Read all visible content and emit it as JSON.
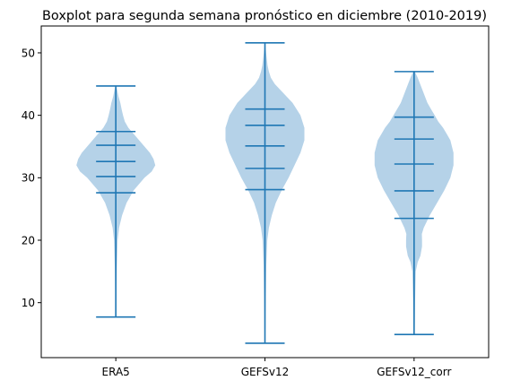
{
  "chart_data": {
    "type": "violin",
    "title": "Boxplot para segunda semana pronóstico en diciembre (2010-2019)",
    "xlabel": "",
    "ylabel": "",
    "ylim": [
      1.2,
      54.3
    ],
    "yticks": [
      10,
      20,
      30,
      40,
      50
    ],
    "categories": [
      "ERA5",
      "GEFSv12",
      "GEFSv12_corr"
    ],
    "series": [
      {
        "min": 7.7,
        "max": 44.7,
        "quantiles": [
          27.6,
          30.2,
          32.6,
          35.2,
          37.4
        ],
        "density": [
          [
            8,
            0.2
          ],
          [
            15,
            0.5
          ],
          [
            20,
            1.0
          ],
          [
            22,
            1.8
          ],
          [
            24,
            3.5
          ],
          [
            26,
            6
          ],
          [
            28,
            10
          ],
          [
            30,
            16
          ],
          [
            31,
            20
          ],
          [
            32,
            22
          ],
          [
            33,
            21
          ],
          [
            34,
            19
          ],
          [
            35,
            16
          ],
          [
            36,
            13
          ],
          [
            37,
            10
          ],
          [
            38,
            7
          ],
          [
            39,
            5
          ],
          [
            40,
            4
          ],
          [
            41,
            3.2
          ],
          [
            42,
            2.5
          ],
          [
            43,
            1.5
          ],
          [
            44,
            0.8
          ],
          [
            44.7,
            0.2
          ]
        ]
      },
      {
        "min": 3.5,
        "max": 51.6,
        "quantiles": [
          28.1,
          31.5,
          35.1,
          38.4,
          41.0
        ],
        "density": [
          [
            3.5,
            0.2
          ],
          [
            10,
            0.4
          ],
          [
            16,
            0.7
          ],
          [
            20,
            1.2
          ],
          [
            22,
            2
          ],
          [
            24,
            3.5
          ],
          [
            26,
            5.5
          ],
          [
            28,
            8.5
          ],
          [
            30,
            12
          ],
          [
            32,
            15
          ],
          [
            34,
            18
          ],
          [
            36,
            20
          ],
          [
            38,
            20
          ],
          [
            40,
            18
          ],
          [
            42,
            14
          ],
          [
            43,
            11
          ],
          [
            44,
            8
          ],
          [
            45,
            5
          ],
          [
            46,
            3
          ],
          [
            47,
            2
          ],
          [
            48,
            1.3
          ],
          [
            50,
            0.6
          ],
          [
            51.6,
            0.2
          ]
        ]
      },
      {
        "min": 4.9,
        "max": 47.0,
        "quantiles": [
          23.5,
          27.9,
          32.2,
          36.2,
          39.7
        ],
        "density": [
          [
            4.9,
            0.2
          ],
          [
            10,
            0.4
          ],
          [
            15,
            0.7
          ],
          [
            16.5,
            1.5
          ],
          [
            17.5,
            2.6
          ],
          [
            19,
            3.3
          ],
          [
            20,
            3.3
          ],
          [
            21,
            3.2
          ],
          [
            22,
            4
          ],
          [
            24,
            6.5
          ],
          [
            26,
            9.5
          ],
          [
            28,
            12.5
          ],
          [
            30,
            15
          ],
          [
            32,
            16.3
          ],
          [
            34,
            16.3
          ],
          [
            36,
            15
          ],
          [
            37,
            13.5
          ],
          [
            38,
            12
          ],
          [
            39,
            10
          ],
          [
            40,
            8.5
          ],
          [
            41,
            7
          ],
          [
            42,
            5.5
          ],
          [
            43,
            4.5
          ],
          [
            44,
            3.5
          ],
          [
            45,
            2.5
          ],
          [
            46,
            1.5
          ],
          [
            47,
            0.3
          ]
        ]
      }
    ],
    "colors": {
      "body": "#b5d2e8",
      "line": "#1f77b4"
    }
  }
}
